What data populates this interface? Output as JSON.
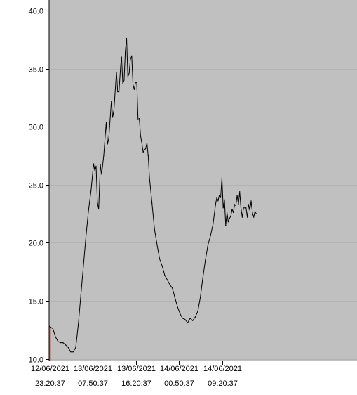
{
  "chart_data": {
    "type": "line",
    "title": "",
    "xlabel": "",
    "ylabel": "",
    "ylim": [
      9.8,
      40.9
    ],
    "xlim": [
      "2021-06-12T23:15:00",
      "2021-06-15T11:50:00"
    ],
    "grid": true,
    "y_ticks": [
      {
        "value": 10.0,
        "label": "10.0"
      },
      {
        "value": 15.0,
        "label": "15.0"
      },
      {
        "value": 20.0,
        "label": "20.0"
      },
      {
        "value": 25.0,
        "label": "25.0"
      },
      {
        "value": 30.0,
        "label": "30.0"
      },
      {
        "value": 35.0,
        "label": "35.0"
      },
      {
        "value": 40.0,
        "label": "40.0"
      }
    ],
    "x_ticks": [
      {
        "time": "2021-06-12T23:20:37",
        "date": "12/06/2021",
        "time_label": "23:20:37"
      },
      {
        "time": "2021-06-13T07:50:37",
        "date": "13/06/2021",
        "time_label": "07:50:37"
      },
      {
        "time": "2021-06-13T16:20:37",
        "date": "13/06/2021",
        "time_label": "16:20:37"
      },
      {
        "time": "2021-06-14T00:50:37",
        "date": "14/06/2021",
        "time_label": "00:50:37"
      },
      {
        "time": "2021-06-14T09:20:37",
        "date": "14/06/2021",
        "time_label": "09:20:37"
      }
    ],
    "series": [
      {
        "points": [
          [
            "2021-06-12T23:20:37",
            12.8
          ],
          [
            "2021-06-13T00:00:00",
            12.6
          ],
          [
            "2021-06-13T00:30:00",
            11.9
          ],
          [
            "2021-06-13T01:00:00",
            11.5
          ],
          [
            "2021-06-13T01:30:00",
            11.4
          ],
          [
            "2021-06-13T02:00:00",
            11.4
          ],
          [
            "2021-06-13T02:30:00",
            11.2
          ],
          [
            "2021-06-13T03:00:00",
            11.0
          ],
          [
            "2021-06-13T03:30:00",
            10.6
          ],
          [
            "2021-06-13T04:00:00",
            10.6
          ],
          [
            "2021-06-13T04:30:00",
            11.0
          ],
          [
            "2021-06-13T05:00:00",
            13.0
          ],
          [
            "2021-06-13T05:30:00",
            15.5
          ],
          [
            "2021-06-13T06:00:00",
            18.0
          ],
          [
            "2021-06-13T06:30:00",
            20.5
          ],
          [
            "2021-06-13T07:00:00",
            22.8
          ],
          [
            "2021-06-13T07:30:00",
            24.5
          ],
          [
            "2021-06-13T08:00:00",
            26.8
          ],
          [
            "2021-06-13T08:15:00",
            26.2
          ],
          [
            "2021-06-13T08:30:00",
            26.6
          ],
          [
            "2021-06-13T08:45:00",
            23.5
          ],
          [
            "2021-06-13T09:00:00",
            22.9
          ],
          [
            "2021-06-13T09:20:00",
            26.7
          ],
          [
            "2021-06-13T09:35:00",
            25.9
          ],
          [
            "2021-06-13T10:00:00",
            27.5
          ],
          [
            "2021-06-13T10:30:00",
            30.4
          ],
          [
            "2021-06-13T10:45:00",
            28.5
          ],
          [
            "2021-06-13T11:00:00",
            29.0
          ],
          [
            "2021-06-13T11:30:00",
            32.2
          ],
          [
            "2021-06-13T11:45:00",
            30.8
          ],
          [
            "2021-06-13T12:00:00",
            31.4
          ],
          [
            "2021-06-13T12:30:00",
            34.7
          ],
          [
            "2021-06-13T12:45:00",
            33.0
          ],
          [
            "2021-06-13T13:00:00",
            33.0
          ],
          [
            "2021-06-13T13:20:00",
            35.3
          ],
          [
            "2021-06-13T13:30:00",
            36.0
          ],
          [
            "2021-06-13T13:45:00",
            33.7
          ],
          [
            "2021-06-13T14:00:00",
            34.0
          ],
          [
            "2021-06-13T14:15:00",
            36.5
          ],
          [
            "2021-06-13T14:30:00",
            37.6
          ],
          [
            "2021-06-13T14:45:00",
            34.3
          ],
          [
            "2021-06-13T15:00:00",
            34.6
          ],
          [
            "2021-06-13T15:15:00",
            35.8
          ],
          [
            "2021-06-13T15:30:00",
            36.1
          ],
          [
            "2021-06-13T15:45:00",
            33.6
          ],
          [
            "2021-06-13T16:00:00",
            33.2
          ],
          [
            "2021-06-13T16:15:00",
            33.8
          ],
          [
            "2021-06-13T16:30:00",
            33.8
          ],
          [
            "2021-06-13T16:45:00",
            30.6
          ],
          [
            "2021-06-13T17:00:00",
            30.7
          ],
          [
            "2021-06-13T17:15:00",
            29.2
          ],
          [
            "2021-06-13T17:30:00",
            28.6
          ],
          [
            "2021-06-13T17:45:00",
            27.8
          ],
          [
            "2021-06-13T18:00:00",
            28.0
          ],
          [
            "2021-06-13T18:15:00",
            28.1
          ],
          [
            "2021-06-13T18:30:00",
            28.6
          ],
          [
            "2021-06-13T18:45:00",
            27.5
          ],
          [
            "2021-06-13T19:00:00",
            25.6
          ],
          [
            "2021-06-13T19:30:00",
            23.4
          ],
          [
            "2021-06-13T20:00:00",
            21.1
          ],
          [
            "2021-06-13T20:30:00",
            19.8
          ],
          [
            "2021-06-13T21:00:00",
            18.6
          ],
          [
            "2021-06-13T21:30:00",
            18.0
          ],
          [
            "2021-06-13T22:00:00",
            17.2
          ],
          [
            "2021-06-13T22:30:00",
            16.8
          ],
          [
            "2021-06-13T23:00:00",
            16.4
          ],
          [
            "2021-06-13T23:30:00",
            16.1
          ],
          [
            "2021-06-14T00:00:00",
            15.3
          ],
          [
            "2021-06-14T00:30:00",
            14.5
          ],
          [
            "2021-06-14T01:00:00",
            13.9
          ],
          [
            "2021-06-14T01:30:00",
            13.5
          ],
          [
            "2021-06-14T02:00:00",
            13.4
          ],
          [
            "2021-06-14T02:30:00",
            13.1
          ],
          [
            "2021-06-14T03:00:00",
            13.5
          ],
          [
            "2021-06-14T03:30:00",
            13.3
          ],
          [
            "2021-06-14T04:00:00",
            13.6
          ],
          [
            "2021-06-14T04:30:00",
            14.1
          ],
          [
            "2021-06-14T05:00:00",
            15.3
          ],
          [
            "2021-06-14T05:30:00",
            17.0
          ],
          [
            "2021-06-14T06:00:00",
            18.5
          ],
          [
            "2021-06-14T06:30:00",
            19.8
          ],
          [
            "2021-06-14T07:00:00",
            20.6
          ],
          [
            "2021-06-14T07:30:00",
            21.6
          ],
          [
            "2021-06-14T08:00:00",
            23.3
          ],
          [
            "2021-06-14T08:15:00",
            23.9
          ],
          [
            "2021-06-14T08:30:00",
            23.6
          ],
          [
            "2021-06-14T08:45:00",
            24.1
          ],
          [
            "2021-06-14T09:00:00",
            23.9
          ],
          [
            "2021-06-14T09:15:00",
            25.6
          ],
          [
            "2021-06-14T09:30:00",
            23.0
          ],
          [
            "2021-06-14T09:45:00",
            23.7
          ],
          [
            "2021-06-14T10:00:00",
            21.5
          ],
          [
            "2021-06-14T10:15:00",
            22.6
          ],
          [
            "2021-06-14T10:30:00",
            21.8
          ],
          [
            "2021-06-14T10:45:00",
            22.1
          ],
          [
            "2021-06-14T11:00:00",
            22.3
          ],
          [
            "2021-06-14T11:15:00",
            22.9
          ],
          [
            "2021-06-14T11:30:00",
            22.6
          ],
          [
            "2021-06-14T11:45:00",
            23.3
          ],
          [
            "2021-06-14T12:00:00",
            23.2
          ],
          [
            "2021-06-14T12:15:00",
            24.1
          ],
          [
            "2021-06-14T12:30:00",
            23.3
          ],
          [
            "2021-06-14T12:45:00",
            24.4
          ],
          [
            "2021-06-14T13:00:00",
            23.0
          ],
          [
            "2021-06-14T13:15:00",
            22.2
          ],
          [
            "2021-06-14T13:30:00",
            23.0
          ],
          [
            "2021-06-14T14:00:00",
            23.0
          ],
          [
            "2021-06-14T14:15:00",
            22.2
          ],
          [
            "2021-06-14T14:30:00",
            23.3
          ],
          [
            "2021-06-14T14:45:00",
            22.8
          ],
          [
            "2021-06-14T15:00:00",
            23.6
          ],
          [
            "2021-06-14T15:15:00",
            22.6
          ],
          [
            "2021-06-14T15:30:00",
            22.2
          ],
          [
            "2021-06-14T15:45:00",
            22.7
          ],
          [
            "2021-06-14T16:00:00",
            22.5
          ]
        ]
      }
    ]
  }
}
